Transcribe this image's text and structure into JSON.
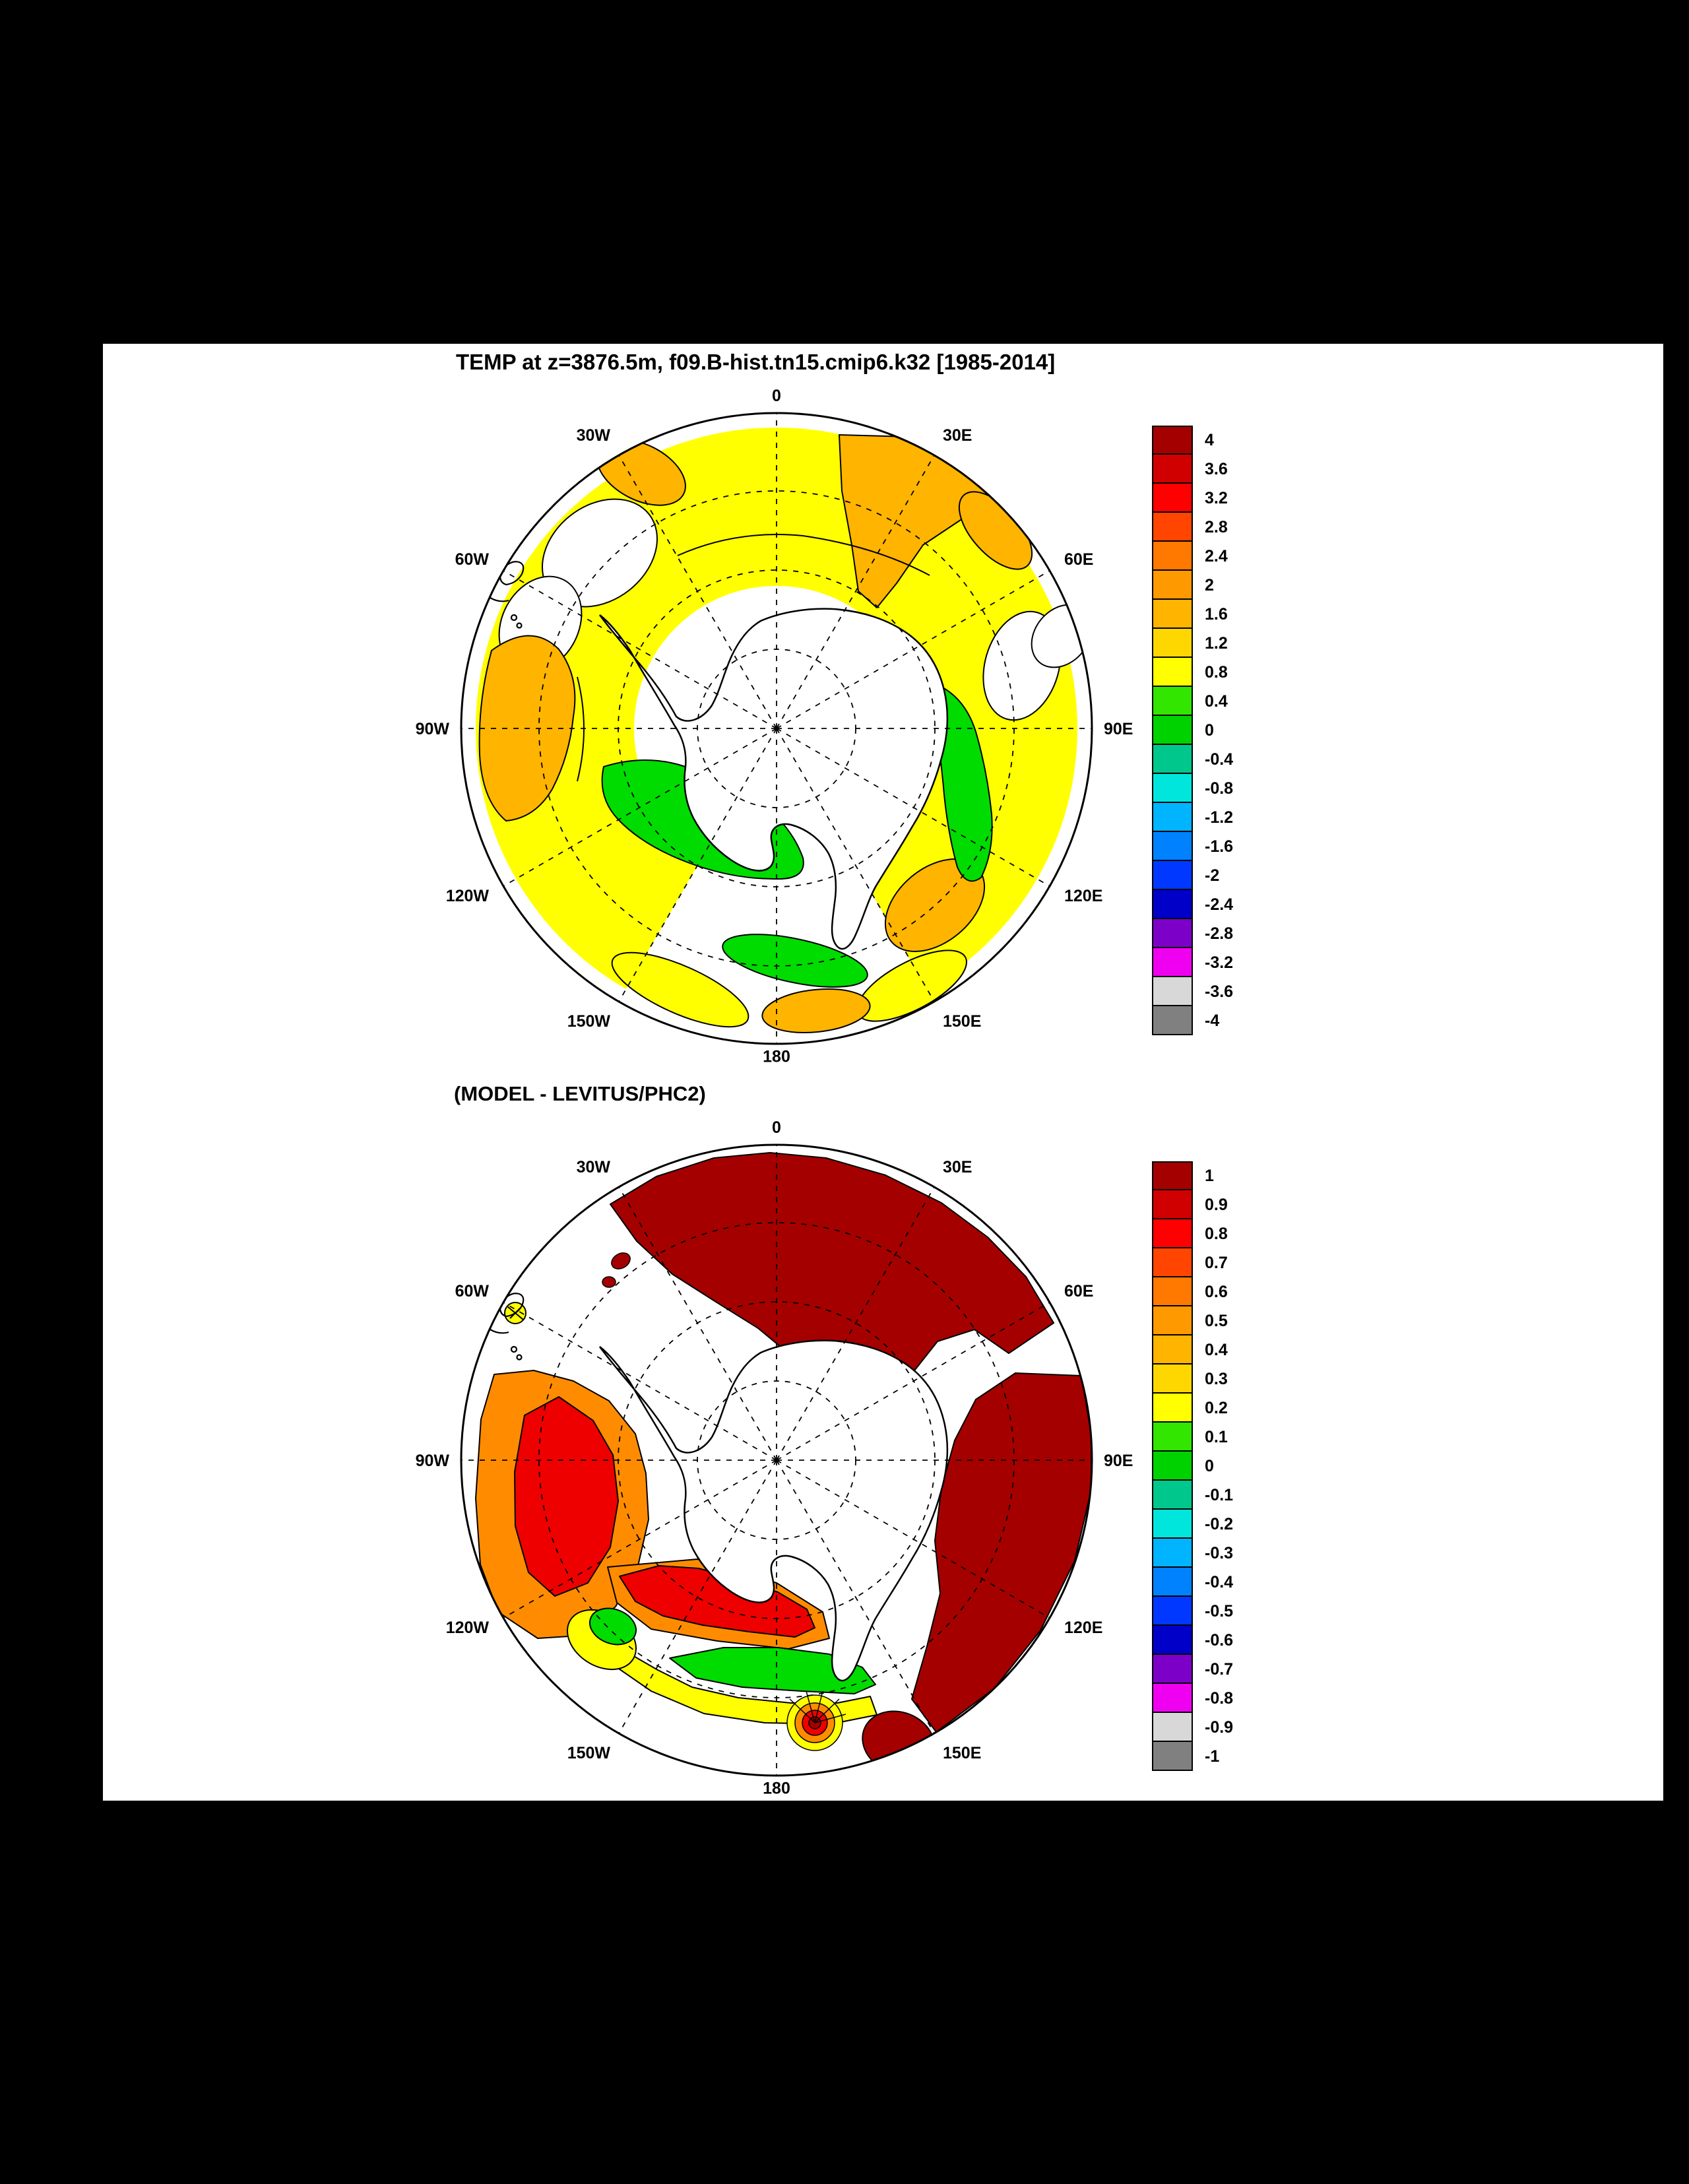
{
  "page": {
    "background": "#000000",
    "panel_background": "#FFFFFF"
  },
  "lon_labels": [
    "0",
    "30W",
    "60W",
    "90W",
    "120W",
    "150W",
    "180",
    "150E",
    "120E",
    "90E",
    "60E",
    "30E"
  ],
  "top_panel": {
    "title": "TEMP at z=3876.5m, f09.B-hist.tn15.cmip6.k32 [1985-2014]",
    "colorbar_values": [
      "4",
      "3.6",
      "3.2",
      "2.8",
      "2.4",
      "2",
      "1.6",
      "1.2",
      "0.8",
      "0.4",
      "0",
      "-0.4",
      "-0.8",
      "-1.2",
      "-1.6",
      "-2",
      "-2.4",
      "-2.8",
      "-3.2",
      "-3.6",
      "-4"
    ]
  },
  "bottom_panel": {
    "title": "(MODEL - LEVITUS/PHC2)",
    "colorbar_values": [
      "1",
      "0.9",
      "0.8",
      "0.7",
      "0.6",
      "0.5",
      "0.4",
      "0.3",
      "0.2",
      "0.1",
      "0",
      "-0.1",
      "-0.2",
      "-0.3",
      "-0.4",
      "-0.5",
      "-0.6",
      "-0.7",
      "-0.8",
      "-0.9",
      "-1"
    ]
  },
  "palette": {
    "colors": [
      "#A50000",
      "#D00000",
      "#FF0000",
      "#FF4500",
      "#FF7800",
      "#FF9900",
      "#FFB400",
      "#FFD700",
      "#FFFF00",
      "#32E600",
      "#00D200",
      "#00C88C",
      "#00E6DC",
      "#00B4FF",
      "#0082FF",
      "#0038FF",
      "#0000C8",
      "#7D00C8",
      "#F000F0",
      "#D8D8D8",
      "#808080"
    ]
  },
  "map_colors": {
    "white": "#FFFFFF",
    "yellow": "#FFFF00",
    "orange": "#FFB400",
    "deep_orange": "#FF8C00",
    "green": "#00DC00",
    "red": "#EE0000",
    "dark_red": "#A50000"
  },
  "chart_data": [
    {
      "type": "heatmap",
      "subtype": "south_polar_stereographic_map",
      "title": "TEMP at z=3876.5m, f09.B-hist.tn15.cmip6.k32 [1985-2014]",
      "region": "Southern Ocean around Antarctica, pole-centered view, 0 longitude at top, 180 at bottom",
      "longitude_labels": [
        "0",
        "30W",
        "60W",
        "90W",
        "120W",
        "150W",
        "180",
        "150E",
        "120E",
        "90E",
        "60E",
        "30E"
      ],
      "graticule": "dashed meridians every 30 degrees and three dashed latitude circles",
      "colorbar": {
        "min": -4,
        "max": 4,
        "step": 0.4,
        "tick_labels": [
          "4",
          "3.6",
          "3.2",
          "2.8",
          "2.4",
          "2",
          "1.6",
          "1.2",
          "0.8",
          "0.4",
          "0",
          "-0.4",
          "-0.8",
          "-1.2",
          "-1.6",
          "-2",
          "-2.4",
          "-2.8",
          "-3.2",
          "-3.6",
          "-4"
        ],
        "colors": [
          "#A50000",
          "#D00000",
          "#FF0000",
          "#FF4500",
          "#FF7800",
          "#FF9900",
          "#FFB400",
          "#FFD700",
          "#FFFF00",
          "#32E600",
          "#00D200",
          "#00C88C",
          "#00E6DC",
          "#00B4FF",
          "#0082FF",
          "#0038FF",
          "#0000C8",
          "#7D00C8",
          "#F000F0",
          "#D8D8D8",
          "#808080"
        ],
        "position": "right"
      },
      "filled_regions": [
        {
          "approx_value": "0.8 to 1.2",
          "color": "#FFFF00",
          "where": "broad circumpolar yellow band surrounding the continent"
        },
        {
          "approx_value": "1.2 to 2.0",
          "color": "#FFB400",
          "where": "orange patches along 30E from the edge inward, near 30W edge, large patch near 90W, patch near 150E, strip near 180 edge"
        },
        {
          "approx_value": "0.4 to 0.8",
          "color": "#00DC00",
          "where": "green areas in the Amundsen/Ross sector (~110W-150W), narrow band along 90E-120E near the coast, strip near 180"
        },
        {
          "approx_value": "masked / no data",
          "color": "#FFFFFF",
          "where": "continental margin, 40W-70W outer sector, 60E-90E outer sector, bottom sector gaps"
        }
      ]
    },
    {
      "type": "heatmap",
      "subtype": "south_polar_stereographic_map",
      "title": "(MODEL - LEVITUS/PHC2)",
      "region": "Same South Polar view, model-minus-observation difference",
      "longitude_labels": [
        "0",
        "30W",
        "60W",
        "90W",
        "120W",
        "150W",
        "180",
        "150E",
        "120E",
        "90E",
        "60E",
        "30E"
      ],
      "graticule": "dashed meridians every 30 degrees and three dashed latitude circles",
      "colorbar": {
        "min": -1,
        "max": 1,
        "step": 0.1,
        "tick_labels": [
          "1",
          "0.9",
          "0.8",
          "0.7",
          "0.6",
          "0.5",
          "0.4",
          "0.3",
          "0.2",
          "0.1",
          "0",
          "-0.1",
          "-0.2",
          "-0.3",
          "-0.4",
          "-0.5",
          "-0.6",
          "-0.7",
          "-0.8",
          "-0.9",
          "-1"
        ],
        "colors": [
          "#A50000",
          "#D00000",
          "#FF0000",
          "#FF4500",
          "#FF7800",
          "#FF9900",
          "#FFB400",
          "#FFD700",
          "#FFFF00",
          "#32E600",
          "#00D200",
          "#00C88C",
          "#00E6DC",
          "#00B4FF",
          "#0082FF",
          "#0038FF",
          "#0000C8",
          "#7D00C8",
          "#F000F0",
          "#D8D8D8",
          "#808080"
        ],
        "position": "right"
      },
      "filled_regions": [
        {
          "approx_value": "0.9 to 1 and above",
          "color": "#A50000",
          "where": "very large dark-red mass over the Atlantic-Indian sector (~45W through 0 to 70E) and a second mass over 80E-150E; small blob near 155E at the edge"
        },
        {
          "approx_value": "0.7 to 0.9",
          "color": "#EE0000",
          "where": "red core of the SE Pacific patch (~90W-110W) and a band near 120W-170W just off the coast"
        },
        {
          "approx_value": "0.4 to 0.7",
          "color": "#FF8C00",
          "where": "orange SE Pacific sector patch roughly 75W-135W"
        },
        {
          "approx_value": "0.2 to 0.4",
          "color": "#FFFF00",
          "where": "yellow strips along the Ross Sea sector (~150W-180) and a wedge near 135W"
        },
        {
          "approx_value": "0 to 0.2",
          "color": "#00DC00",
          "where": "green strip close to the coast near 160W-180"
        },
        {
          "approx_value": "tight contour bullseye",
          "color": "concentric yellow-orange-red-dark red rings",
          "where": "near 180 at the lower map edge"
        }
      ]
    }
  ]
}
